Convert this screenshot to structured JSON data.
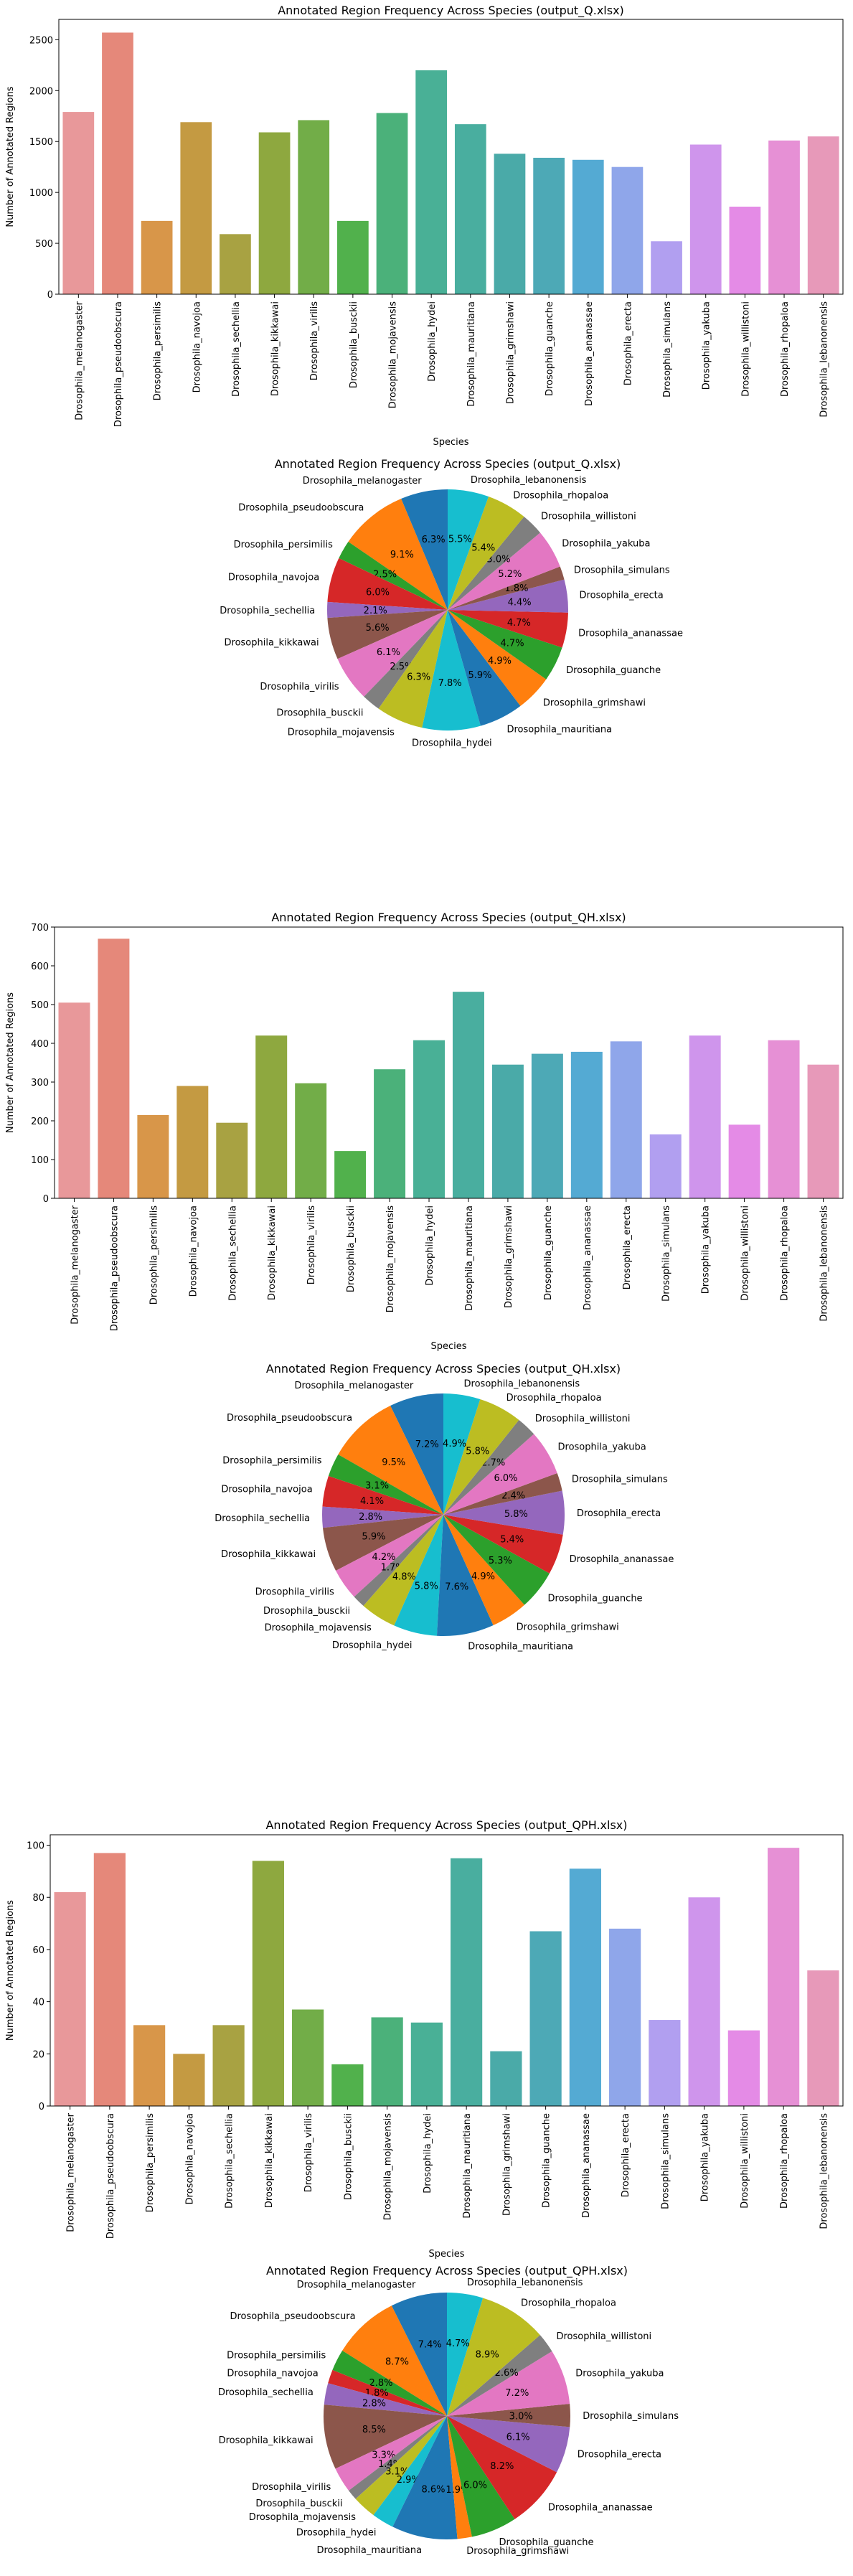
{
  "colors": {
    "bars": [
      "#e8989a",
      "#e5887a",
      "#d89649",
      "#c49a42",
      "#a8a242",
      "#8ea83f",
      "#72ad48",
      "#51b14c",
      "#4bb17a",
      "#49b096",
      "#49ae9f",
      "#4aaaa8",
      "#4da9b6",
      "#54aad3",
      "#8fa6ea",
      "#b19ff0",
      "#cf95ec",
      "#e48be6",
      "#e690d5",
      "#e799b9"
    ],
    "pie": [
      "#1f77b4",
      "#ff7f0e",
      "#2ca02c",
      "#d62728",
      "#9467bd",
      "#8c564b",
      "#e377c2",
      "#7f7f7f",
      "#bcbd22",
      "#17becf"
    ]
  },
  "species": [
    "Drosophila_melanogaster",
    "Drosophila_pseudoobscura",
    "Drosophila_persimilis",
    "Drosophila_navojoa",
    "Drosophila_sechellia",
    "Drosophila_kikkawai",
    "Drosophila_virilis",
    "Drosophila_busckii",
    "Drosophila_mojavensis",
    "Drosophila_hydei",
    "Drosophila_mauritiana",
    "Drosophila_grimshawi",
    "Drosophila_guanche",
    "Drosophila_ananassae",
    "Drosophila_erecta",
    "Drosophila_simulans",
    "Drosophila_yakuba",
    "Drosophila_willistoni",
    "Drosophila_rhopaloa",
    "Drosophila_lebanonensis"
  ],
  "chart_data": [
    {
      "type": "bar",
      "title": "Annotated Region Frequency Across Species (output_Q.xlsx)",
      "xlabel": "Species",
      "ylabel": "Number of Annotated Regions",
      "ylim": [
        0,
        2700
      ],
      "yticks": [
        0,
        500,
        1000,
        1500,
        2000,
        2500
      ],
      "values": [
        1790,
        2570,
        720,
        1690,
        590,
        1590,
        1710,
        720,
        1780,
        2200,
        1670,
        1380,
        1340,
        1320,
        1250,
        520,
        1470,
        860,
        1510,
        1550
      ]
    },
    {
      "type": "pie",
      "title": "Annotated Region Frequency Across Species (output_Q.xlsx)",
      "labels": [
        "Drosophila_melanogaster",
        "Drosophila_pseudoobscura",
        "Drosophila_persimilis",
        "Drosophila_navojoa",
        "Drosophila_sechellia",
        "Drosophila_kikkawai",
        "Drosophila_virilis",
        "Drosophila_busckii",
        "Drosophila_mojavensis",
        "Drosophila_hydei",
        "Drosophila_mauritiana",
        "Drosophila_grimshawi",
        "Drosophila_guanche",
        "Drosophila_ananassae",
        "Drosophila_erecta",
        "Drosophila_simulans",
        "Drosophila_yakuba",
        "Drosophila_willistoni",
        "Drosophila_rhopaloa",
        "Drosophila_lebanonensis"
      ],
      "percents": [
        6.3,
        9.1,
        2.5,
        6.0,
        2.1,
        5.6,
        6.1,
        2.5,
        6.3,
        7.8,
        5.9,
        4.9,
        4.7,
        4.7,
        4.4,
        1.8,
        5.2,
        3.0,
        5.4,
        5.5
      ],
      "percent_labels": [
        "6.3%",
        "9.1%",
        "2.5%",
        "6.0%",
        "2.1%",
        "5.6%",
        "6.1%",
        "2.5%",
        "6.3%",
        "7.8%",
        "5.9%",
        "4.9%",
        "4.7%",
        "4.7%",
        "4.4%",
        "1.8%",
        "5.2%",
        "3.0%",
        "5.4%",
        "5.5%"
      ]
    },
    {
      "type": "bar",
      "title": "Annotated Region Frequency Across Species (output_QH.xlsx)",
      "xlabel": "Species",
      "ylabel": "Number of Annotated Regions",
      "ylim": [
        0,
        700
      ],
      "yticks": [
        0,
        100,
        200,
        300,
        400,
        500,
        600,
        700
      ],
      "values": [
        505,
        670,
        215,
        290,
        195,
        420,
        297,
        122,
        333,
        408,
        533,
        345,
        373,
        378,
        405,
        165,
        420,
        190,
        408,
        345
      ]
    },
    {
      "type": "pie",
      "title": "Annotated Region Frequency Across Species (output_QH.xlsx)",
      "labels": [
        "Drosophila_melanogaster",
        "Drosophila_pseudoobscura",
        "Drosophila_persimilis",
        "Drosophila_navojoa",
        "Drosophila_sechellia",
        "Drosophila_kikkawai",
        "Drosophila_virilis",
        "Drosophila_busckii",
        "Drosophila_mojavensis",
        "Drosophila_hydei",
        "Drosophila_mauritiana",
        "Drosophila_grimshawi",
        "Drosophila_guanche",
        "Drosophila_ananassae",
        "Drosophila_erecta",
        "Drosophila_simulans",
        "Drosophila_yakuba",
        "Drosophila_willistoni",
        "Drosophila_rhopaloa",
        "Drosophila_lebanonensis"
      ],
      "percents": [
        7.2,
        9.5,
        3.1,
        4.1,
        2.8,
        5.9,
        4.2,
        1.7,
        4.8,
        5.8,
        7.6,
        4.9,
        5.3,
        5.4,
        5.8,
        2.4,
        6.0,
        2.7,
        5.8,
        4.9
      ],
      "percent_labels": [
        "7.2%",
        "9.5%",
        "3.1%",
        "4.1%",
        "2.8%",
        "5.9%",
        "4.2%",
        "1.7%",
        "4.8%",
        "5.8%",
        "7.6%",
        "4.9%",
        "5.3%",
        "5.4%",
        "5.8%",
        "2.4%",
        "6.0%",
        "2.7%",
        "5.8%",
        "4.9%"
      ]
    },
    {
      "type": "bar",
      "title": "Annotated Region Frequency Across Species (output_QPH.xlsx)",
      "xlabel": "Species",
      "ylabel": "Number of Annotated Regions",
      "ylim": [
        0,
        104
      ],
      "yticks": [
        0,
        20,
        40,
        60,
        80,
        100
      ],
      "values": [
        82,
        97,
        31,
        20,
        31,
        94,
        37,
        16,
        34,
        32,
        95,
        21,
        67,
        91,
        68,
        33,
        80,
        29,
        99,
        52
      ]
    },
    {
      "type": "pie",
      "title": "Annotated Region Frequency Across Species (output_QPH.xlsx)",
      "labels": [
        "Drosophila_melanogaster",
        "Drosophila_pseudoobscura",
        "Drosophila_persimilis",
        "Drosophila_navojoa",
        "Drosophila_sechellia",
        "Drosophila_kikkawai",
        "Drosophila_virilis",
        "Drosophila_busckii",
        "Drosophila_mojavensis",
        "Drosophila_hydei",
        "Drosophila_mauritiana",
        "Drosophila_grimshawi",
        "Drosophila_guanche",
        "Drosophila_ananassae",
        "Drosophila_erecta",
        "Drosophila_simulans",
        "Drosophila_yakuba",
        "Drosophila_willistoni",
        "Drosophila_rhopaloa",
        "Drosophila_lebanonensis"
      ],
      "percents": [
        7.4,
        8.7,
        2.8,
        1.8,
        2.8,
        8.5,
        3.3,
        1.4,
        3.1,
        2.9,
        8.6,
        1.9,
        6.0,
        8.2,
        6.1,
        3.0,
        7.2,
        2.6,
        8.9,
        4.7
      ],
      "percent_labels": [
        "7.4%",
        "8.7%",
        "2.8%",
        "1.8%",
        "2.8%",
        "8.5%",
        "3.3%",
        "1.4%",
        "3.1%",
        "2.9%",
        "8.6%",
        "1.9%",
        "6.0%",
        "8.2%",
        "6.1%",
        "3.0%",
        "7.2%",
        "2.6%",
        "8.9%",
        "4.7%"
      ]
    }
  ]
}
